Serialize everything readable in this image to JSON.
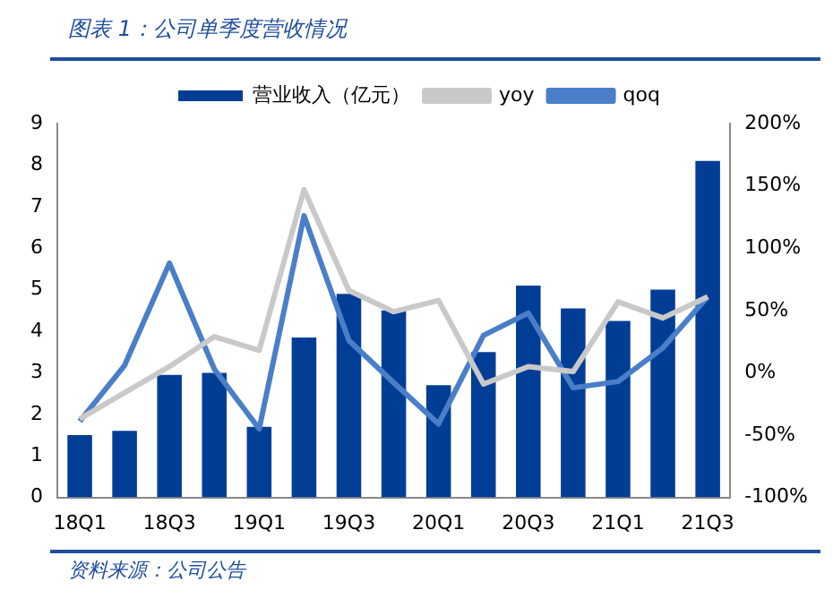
{
  "chart_data": {
    "type": "bar",
    "title": "图表 1：公司单季度营收情况",
    "categories": [
      "18Q1",
      null,
      "18Q3",
      null,
      "19Q1",
      null,
      "19Q3",
      null,
      "20Q1",
      null,
      "20Q3",
      null,
      "21Q1",
      null,
      "21Q3"
    ],
    "series": [
      {
        "name": "营业收入（亿元）",
        "color": "#003e96",
        "values": [
          1.5,
          1.6,
          2.95,
          3.0,
          1.7,
          3.85,
          4.9,
          4.5,
          2.7,
          3.5,
          5.1,
          4.55,
          4.25,
          5.0,
          8.1
        ]
      },
      {
        "name": "yoy",
        "type": "line",
        "axis": "y2",
        "color": "#c9c9c9",
        "values": [
          -37,
          -16,
          5,
          29,
          18,
          147,
          66,
          49,
          58,
          -9,
          5,
          1,
          57,
          44,
          61
        ]
      },
      {
        "name": "qoq",
        "type": "line",
        "axis": "y2",
        "color": "#4a7fc8",
        "values": [
          -39,
          6,
          88,
          3,
          -45,
          126,
          26,
          -8,
          -41,
          30,
          48,
          -12,
          -7,
          20,
          61
        ]
      }
    ],
    "ylim": [
      0,
      9
    ],
    "yticks": [
      0,
      1,
      2,
      3,
      4,
      5,
      6,
      7,
      8,
      9
    ],
    "y2lim": [
      -100,
      200
    ],
    "y2ticks": [
      {
        "value": -100,
        "label": "-100%"
      },
      {
        "value": -50,
        "label": "-50%"
      },
      {
        "value": 0,
        "label": "0%"
      },
      {
        "value": 50,
        "label": "50%"
      },
      {
        "value": 100,
        "label": "100%"
      },
      {
        "value": 150,
        "label": "150%"
      },
      {
        "value": 200,
        "label": "200%"
      }
    ],
    "legend": "top",
    "grid": false,
    "marker": "none",
    "line_style": "solid",
    "annotations": [
      "资料来源：公司公告"
    ]
  }
}
